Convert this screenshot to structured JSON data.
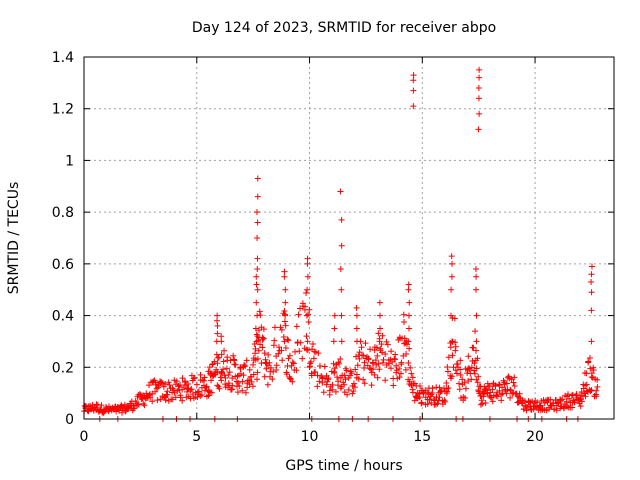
{
  "chart_data": {
    "type": "scatter",
    "title": "Day 124 of 2023, SRMTID for receiver abpo",
    "xlabel": "GPS time / hours",
    "ylabel": "SRMTID / TECUs",
    "xlim": [
      0,
      23.5
    ],
    "ylim": [
      0,
      1.4
    ],
    "xticks": [
      0,
      5,
      10,
      15,
      20
    ],
    "yticks": [
      0,
      0.2,
      0.4,
      0.6,
      0.8,
      1,
      1.2,
      1.4
    ],
    "ytick_labels": [
      "0",
      "0.2",
      "0.4",
      "0.6",
      "0.8",
      "1",
      "1.2",
      "1.4"
    ],
    "grid": true,
    "marker": "+",
    "color": "#ff0000",
    "envelope": {
      "x": [
        0,
        0.5,
        1,
        1.5,
        2,
        2.5,
        3,
        3.5,
        4,
        4.5,
        5,
        5.5,
        5.8,
        6.2,
        6.6,
        7,
        7.5,
        7.8,
        8.2,
        8.8,
        9.2,
        9.8,
        10.2,
        10.8,
        11.3,
        11.8,
        12.3,
        12.8,
        13.2,
        13.8,
        14.2,
        14.6,
        15,
        15.5,
        16,
        16.4,
        16.8,
        17.3,
        17.6,
        18,
        18.5,
        19,
        19.5,
        20,
        20.5,
        21,
        21.5,
        22,
        22.4,
        22.8
      ],
      "values": [
        0.04,
        0.05,
        0.04,
        0.04,
        0.05,
        0.08,
        0.12,
        0.12,
        0.12,
        0.13,
        0.14,
        0.15,
        0.2,
        0.22,
        0.2,
        0.17,
        0.2,
        0.35,
        0.2,
        0.4,
        0.2,
        0.45,
        0.25,
        0.15,
        0.2,
        0.15,
        0.25,
        0.22,
        0.3,
        0.2,
        0.35,
        0.12,
        0.1,
        0.1,
        0.1,
        0.35,
        0.1,
        0.3,
        0.1,
        0.12,
        0.12,
        0.15,
        0.06,
        0.06,
        0.06,
        0.06,
        0.08,
        0.08,
        0.2,
        0.12
      ]
    },
    "spikes": [
      {
        "x": 5.9,
        "values": [
          0.3,
          0.33,
          0.36,
          0.38,
          0.4
        ]
      },
      {
        "x": 6.1,
        "values": [
          0.25,
          0.3,
          0.32
        ]
      },
      {
        "x": 7.7,
        "values": [
          0.4,
          0.5,
          0.58,
          0.62,
          0.7,
          0.76,
          0.8,
          0.86,
          0.93
        ]
      },
      {
        "x": 7.65,
        "values": [
          0.3,
          0.35,
          0.45,
          0.52,
          0.55
        ]
      },
      {
        "x": 8.9,
        "values": [
          0.3,
          0.4,
          0.45,
          0.5,
          0.55,
          0.57
        ]
      },
      {
        "x": 9.9,
        "values": [
          0.3,
          0.4,
          0.5,
          0.55,
          0.6,
          0.62
        ]
      },
      {
        "x": 11.4,
        "values": [
          0.3,
          0.4,
          0.5,
          0.58,
          0.67,
          0.77,
          0.88
        ]
      },
      {
        "x": 11.1,
        "values": [
          0.3,
          0.35,
          0.4
        ]
      },
      {
        "x": 12.1,
        "values": [
          0.3,
          0.35,
          0.4,
          0.43
        ]
      },
      {
        "x": 13.1,
        "values": [
          0.3,
          0.35,
          0.4,
          0.45
        ]
      },
      {
        "x": 14.4,
        "values": [
          0.3,
          0.35,
          0.4,
          0.45,
          0.5,
          0.52
        ]
      },
      {
        "x": 14.6,
        "values": [
          1.21,
          1.27,
          1.31,
          1.33
        ]
      },
      {
        "x": 16.3,
        "values": [
          0.3,
          0.4,
          0.5,
          0.55,
          0.6,
          0.63
        ]
      },
      {
        "x": 17.4,
        "values": [
          0.3,
          0.4,
          0.5,
          0.55,
          0.58
        ]
      },
      {
        "x": 17.5,
        "values": [
          1.12,
          1.18,
          1.24,
          1.28,
          1.32,
          1.35
        ]
      },
      {
        "x": 22.5,
        "values": [
          0.3,
          0.42,
          0.49,
          0.53,
          0.56,
          0.59
        ]
      }
    ],
    "zeros_x": [
      0.7,
      1.5,
      3.5,
      4.1,
      4.7,
      5.8,
      6.8,
      10.1,
      11.3,
      11.9,
      12.6,
      13.7,
      14.9,
      16.5,
      16.8,
      18.0,
      19.2,
      19.7,
      20.3,
      21.4,
      21.9
    ]
  }
}
